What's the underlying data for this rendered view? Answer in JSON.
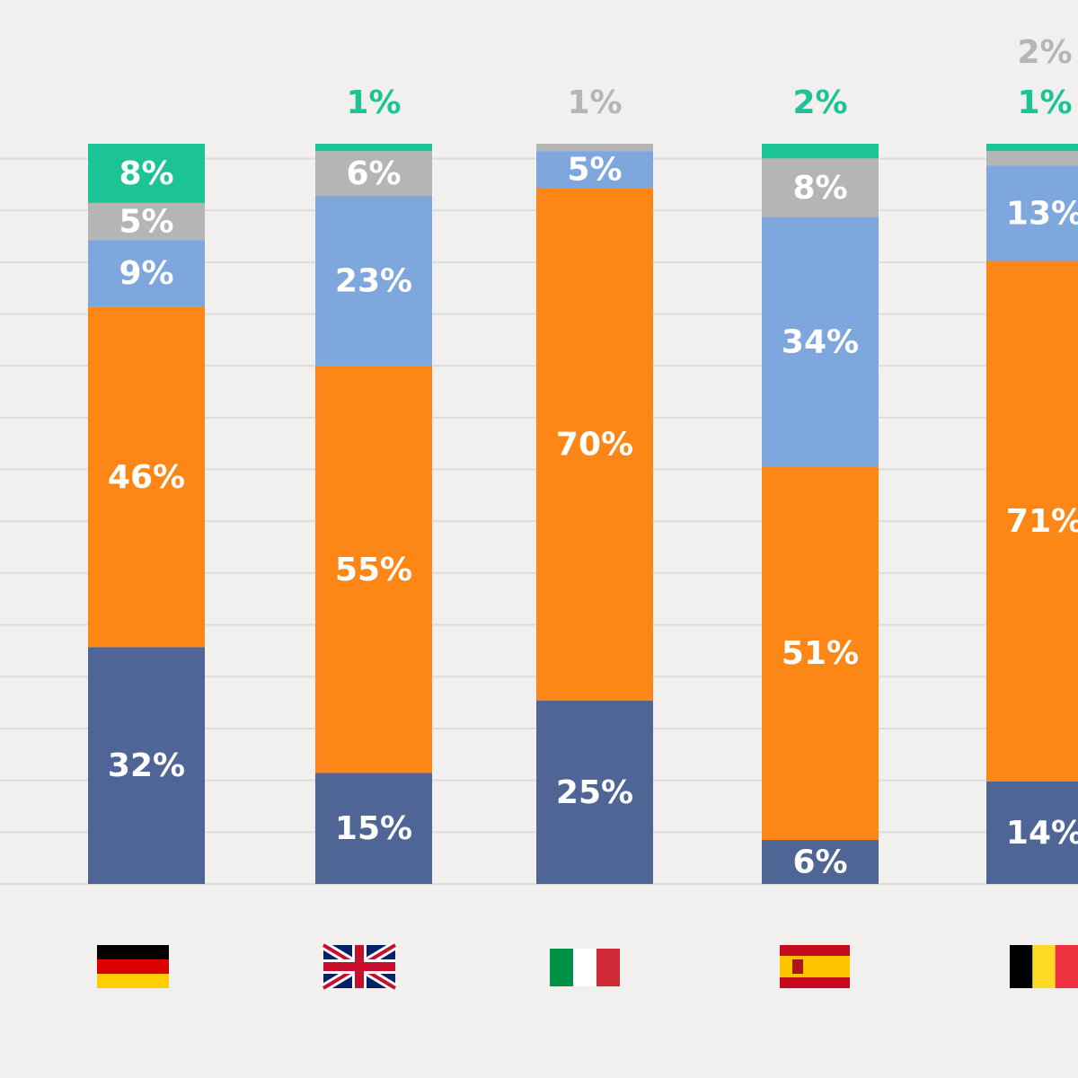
{
  "chart_data": {
    "type": "bar",
    "stacked": true,
    "categories": [
      "Germany",
      "United Kingdom",
      "Italy",
      "Spain",
      "Belgium"
    ],
    "category_icons": [
      "flag-germany",
      "flag-united-kingdom",
      "flag-italy",
      "flag-spain",
      "flag-belgium"
    ],
    "ylim": [
      0,
      100
    ],
    "grid": true,
    "series": [
      {
        "color": "#4e6596",
        "values": [
          32,
          15,
          25,
          6,
          14
        ],
        "labels": [
          "32%",
          "15%",
          "25%",
          "6%",
          "14%"
        ]
      },
      {
        "color": "#fc8616",
        "values": [
          46,
          55,
          70,
          51,
          71
        ],
        "labels": [
          "46%",
          "55%",
          "70%",
          "51%",
          "71%"
        ]
      },
      {
        "color": "#7ea7dd",
        "values": [
          9,
          23,
          5,
          34,
          13
        ],
        "labels": [
          "9%",
          "23%",
          "5%",
          "34%",
          "13%"
        ]
      },
      {
        "color": "#b5b5b5",
        "values": [
          5,
          6,
          1,
          8,
          2
        ],
        "labels": [
          "5%",
          "6%",
          "1%",
          "8%",
          "2%"
        ]
      },
      {
        "color": "#1cc495",
        "values": [
          8,
          1,
          0,
          2,
          1
        ],
        "labels": [
          "8%",
          "1%",
          "",
          "2%",
          "1%"
        ]
      }
    ]
  }
}
